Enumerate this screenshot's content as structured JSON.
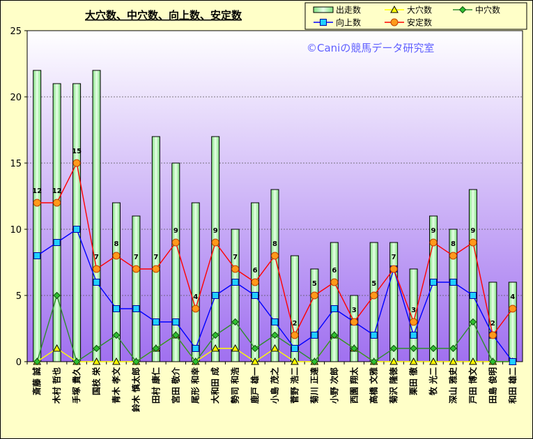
{
  "chart_data": {
    "type": "bar",
    "title": "大穴数、中穴数、向上数、安定数",
    "watermark": "©Caniの競馬データ研究室",
    "ylim": [
      0,
      25
    ],
    "yticks": [
      0,
      5,
      10,
      15,
      20,
      25
    ],
    "grid": true,
    "legend_position": "top-right",
    "categories": [
      "斎藤 誠",
      "木村 哲也",
      "手塚 貴久",
      "国枝 栄",
      "青木 孝文",
      "鈴木 慎太郎",
      "田村 康仁",
      "宮田 敬介",
      "尾形 和幸",
      "大和田 成",
      "勢司 和浩",
      "鹿戸 雄一",
      "小島 茂之",
      "菅野 浩二",
      "菊川 正達",
      "小野 次郎",
      "西園 翔太",
      "高橋 文雅",
      "菊沢 隆徳",
      "栗田 徹",
      "牧 光二",
      "深山 雅史",
      "戸田 博文",
      "田島 俊明",
      "和田 雄二"
    ],
    "series": [
      {
        "name": "出走数",
        "kind": "bar",
        "color": "#b8f0b8",
        "values": [
          22,
          21,
          21,
          22,
          12,
          11,
          17,
          15,
          12,
          17,
          10,
          12,
          13,
          8,
          7,
          9,
          5,
          9,
          9,
          7,
          11,
          10,
          13,
          6,
          6
        ]
      },
      {
        "name": "大穴数",
        "kind": "line",
        "color": "#ffff00",
        "marker": "triangle",
        "values": [
          0,
          1,
          0,
          0,
          0,
          0,
          1,
          2,
          0,
          1,
          1,
          0,
          1,
          0,
          0,
          2,
          1,
          0,
          0,
          0,
          0,
          0,
          0,
          0,
          0
        ]
      },
      {
        "name": "中穴数",
        "kind": "line",
        "color": "#2e8b2e",
        "marker": "diamond",
        "values": [
          0,
          5,
          0,
          1,
          2,
          0,
          1,
          2,
          0,
          2,
          3,
          1,
          2,
          1,
          0,
          2,
          1,
          0,
          1,
          1,
          1,
          1,
          3,
          0,
          0
        ]
      },
      {
        "name": "向上数",
        "kind": "line",
        "color": "#0000ff",
        "marker": "square",
        "values": [
          8,
          9,
          10,
          6,
          4,
          4,
          3,
          3,
          1,
          5,
          6,
          5,
          3,
          1,
          2,
          4,
          3,
          2,
          7,
          2,
          6,
          6,
          5,
          2,
          0
        ]
      },
      {
        "name": "安定数",
        "kind": "line",
        "color": "#ff0000",
        "marker": "circle",
        "values": [
          12,
          12,
          15,
          7,
          8,
          7,
          7,
          9,
          4,
          9,
          7,
          6,
          8,
          2,
          5,
          6,
          3,
          5,
          7,
          3,
          9,
          8,
          9,
          2,
          4
        ]
      }
    ],
    "data_labels_series": "安定数"
  },
  "colors": {
    "outer_bg": "#ffffc8",
    "plot_top": "#ffffff",
    "plot_bottom": "#a070f0",
    "watermark": "#6060ff"
  }
}
